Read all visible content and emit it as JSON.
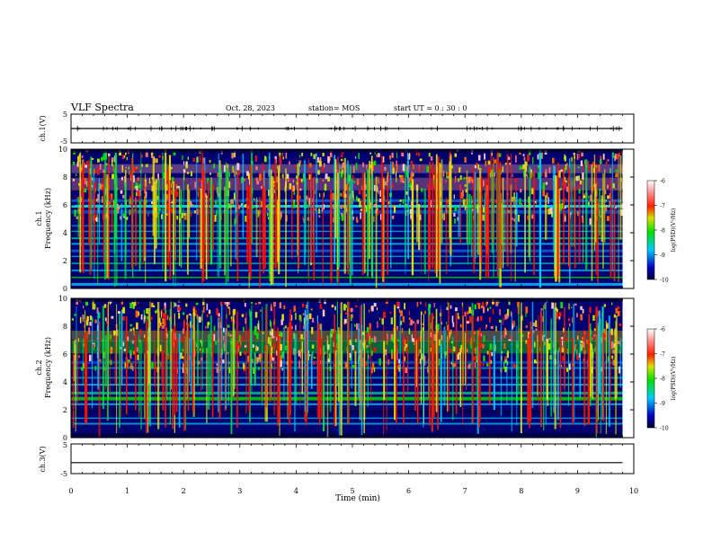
{
  "header": {
    "title": "VLF Spectra",
    "date": "Oct. 28, 2023",
    "station": "station= MOS",
    "start": "start  UT =   0 : 30 : 0"
  },
  "chart_data": [
    {
      "type": "line",
      "name": "ch1-waveform",
      "ylabel": "ch.1(V)",
      "ylim": [
        -5,
        5
      ],
      "y_ticks": [
        "5",
        "-5"
      ],
      "baseline_value": 0,
      "x": [
        0,
        9.8
      ],
      "y": [
        0,
        0
      ]
    },
    {
      "type": "heatmap",
      "name": "ch1-spectrogram",
      "ylabel_line1": "ch.1",
      "ylabel_line2": "Frequency (kHz)",
      "ylim": [
        0,
        10
      ],
      "y_ticks": [
        "0",
        "2",
        "4",
        "6",
        "8",
        "10"
      ],
      "colorbar": {
        "label": "log(PSD)(V²/Hz)",
        "ticks": [
          "-6",
          "-7",
          "-8",
          "-9",
          "-10"
        ],
        "range": [
          -10,
          -6
        ]
      }
    },
    {
      "type": "heatmap",
      "name": "ch2-spectrogram",
      "ylabel_line1": "ch.2",
      "ylabel_line2": "Frequency (kHz)",
      "ylim": [
        0,
        10
      ],
      "y_ticks": [
        "0",
        "2",
        "4",
        "6",
        "8",
        "10"
      ],
      "colorbar": {
        "label": "log(PSD)(V²/Hz)",
        "ticks": [
          "-6",
          "-7",
          "-8",
          "-9",
          "-10"
        ],
        "range": [
          -10,
          -6
        ]
      }
    },
    {
      "type": "line",
      "name": "ch3-waveform",
      "ylabel": "ch.3(V)",
      "ylim": [
        -5,
        5
      ],
      "y_ticks": [
        "5",
        "-5"
      ],
      "baseline_value": -1.3,
      "x": [
        0,
        9.8
      ],
      "y": [
        -1.3,
        -1.3
      ]
    }
  ],
  "xaxis": {
    "label": "Time (min)",
    "xlim": [
      0,
      10
    ],
    "ticks": [
      "0",
      "1",
      "2",
      "3",
      "4",
      "5",
      "6",
      "7",
      "8",
      "9",
      "10"
    ],
    "data_end": 9.8
  },
  "colors": {
    "low": "#000080",
    "mid": "#00e000",
    "high": "#ff0000",
    "top": "#ffffff"
  }
}
